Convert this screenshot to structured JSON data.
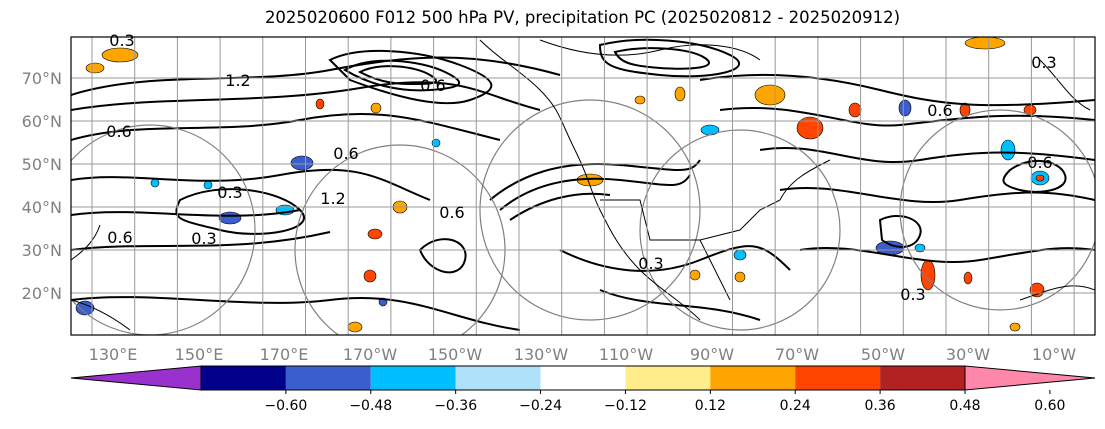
{
  "title": "2025020600 F012 500 hPa PV, precipitation PC (2025020812 - 2025020912)",
  "map": {
    "lat_labels": [
      "70°N",
      "60°N",
      "50°N",
      "40°N",
      "30°N",
      "20°N"
    ],
    "lon_labels": [
      "130°E",
      "150°E",
      "170°E",
      "170°W",
      "150°W",
      "130°W",
      "110°W",
      "90°W",
      "70°W",
      "50°W",
      "30°W",
      "10°W"
    ],
    "contour_labels": [
      "0.3",
      "1.2",
      "0.6",
      "0.6",
      "0.6",
      "0.3",
      "1.2",
      "0.6",
      "0.3",
      "0.3",
      "0.6",
      "0.3",
      "0.6",
      "0.3",
      "0.6"
    ]
  },
  "colorbar": {
    "colors": [
      "#9932cc",
      "#00008b",
      "#3a5fcd",
      "#00bfff",
      "#afe1fa",
      "#ffffff",
      "#ffec8b",
      "#ffa500",
      "#ff4500",
      "#b22222",
      "#ff88aa"
    ],
    "tick_labels": [
      "−0.60",
      "−0.48",
      "−0.36",
      "−0.24",
      "−0.12",
      "0.12",
      "0.24",
      "0.36",
      "0.48",
      "0.60"
    ]
  }
}
